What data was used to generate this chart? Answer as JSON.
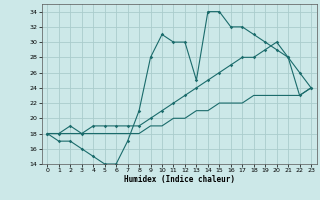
{
  "title": "",
  "xlabel": "Humidex (Indice chaleur)",
  "background_color": "#cce8e8",
  "grid_color": "#aacccc",
  "line_color": "#1a6b6b",
  "x": [
    0,
    1,
    2,
    3,
    4,
    5,
    6,
    7,
    8,
    9,
    10,
    11,
    12,
    13,
    14,
    15,
    16,
    17,
    18,
    19,
    20,
    21,
    22,
    23
  ],
  "line1": [
    18,
    17,
    17,
    16,
    15,
    14,
    14,
    17,
    21,
    28,
    31,
    30,
    30,
    25,
    34,
    34,
    32,
    32,
    31,
    30,
    29,
    28,
    26,
    24
  ],
  "line2": [
    18,
    18,
    19,
    18,
    19,
    19,
    19,
    19,
    19,
    20,
    21,
    22,
    23,
    24,
    25,
    26,
    27,
    28,
    28,
    29,
    30,
    28,
    23,
    24
  ],
  "line3": [
    18,
    18,
    18,
    18,
    18,
    18,
    18,
    18,
    18,
    19,
    19,
    20,
    20,
    21,
    21,
    22,
    22,
    22,
    23,
    23,
    23,
    23,
    23,
    24
  ],
  "ylim": [
    14,
    35
  ],
  "xlim": [
    -0.5,
    23.5
  ],
  "yticks": [
    14,
    16,
    18,
    20,
    22,
    24,
    26,
    28,
    30,
    32,
    34
  ],
  "xticks": [
    0,
    1,
    2,
    3,
    4,
    5,
    6,
    7,
    8,
    9,
    10,
    11,
    12,
    13,
    14,
    15,
    16,
    17,
    18,
    19,
    20,
    21,
    22,
    23
  ]
}
